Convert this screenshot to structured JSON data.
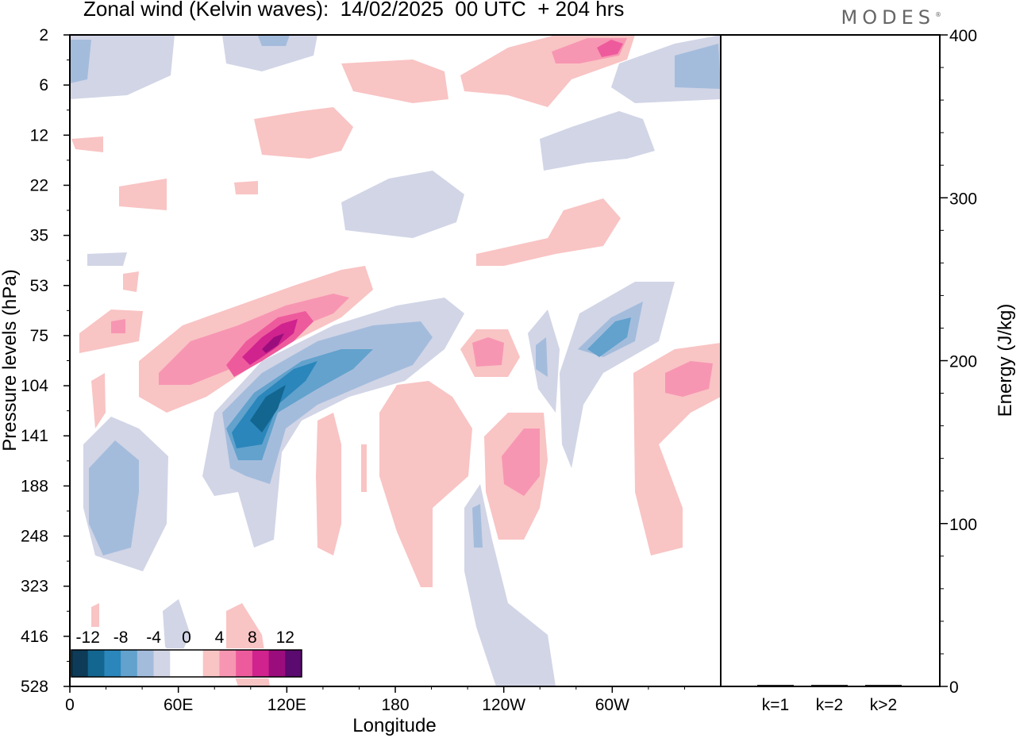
{
  "title": "Zonal wind (Kelvin waves):  14/02/2025  00 UTC  + 204 hrs",
  "logo": "MODES",
  "logo_mark": "®",
  "chart_data": [
    {
      "type": "heatmap",
      "xlabel": "Longitude",
      "ylabel": "Pressure levels (hPa)",
      "x_ticks": [
        "0",
        "60E",
        "120E",
        "180",
        "120W",
        "60W"
      ],
      "y_ticks": [
        "2",
        "6",
        "12",
        "22",
        "35",
        "53",
        "75",
        "104",
        "141",
        "188",
        "248",
        "323",
        "416",
        "528"
      ],
      "colorbar": {
        "labels": [
          "-12",
          "-8",
          "-4",
          "0",
          "4",
          "8",
          "12"
        ],
        "levels": [
          -14,
          -12,
          -10,
          -8,
          -6,
          -4,
          -2,
          0,
          2,
          4,
          6,
          8,
          10,
          12,
          14
        ],
        "colors": [
          "#0d3b58",
          "#12668f",
          "#2a86bb",
          "#62a2cd",
          "#a4bcdc",
          "#d1d5e6",
          "#ffffff",
          "#ffffff",
          "#f9c4c4",
          "#f796b2",
          "#ee5b9d",
          "#d0238e",
          "#9b0d7c",
          "#5b0a6f"
        ]
      },
      "colors": {
        "neg_light": "#d1d5e6",
        "neg_1": "#a4bcdc",
        "neg_2": "#62a2cd",
        "neg_3": "#2a86bb",
        "neg_4": "#12668f",
        "neg_5": "#0d3b58",
        "pos_light": "#f9c4c4",
        "pos_1": "#f796b2",
        "pos_2": "#ee5b9d",
        "pos_3": "#d0238e",
        "pos_4": "#9b0d7c"
      }
    },
    {
      "type": "bar",
      "ylabel": "Energy (J/kg)",
      "categories": [
        "k=1",
        "k=2",
        "k>2"
      ],
      "values": [
        0.5,
        0.4,
        0.7
      ],
      "ylim": [
        0,
        400
      ],
      "y_ticks": [
        "0",
        "100",
        "200",
        "300",
        "400"
      ]
    }
  ]
}
